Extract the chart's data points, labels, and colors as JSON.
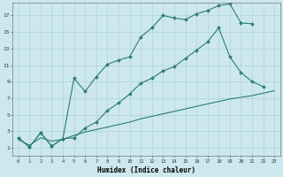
{
  "bg_color": "#cce8ee",
  "line_color": "#2e7d6e",
  "grid_color": "#aaccd4",
  "xlabel": "Humidex (Indice chaleur)",
  "ylabel_ticks": [
    1,
    3,
    5,
    7,
    9,
    11,
    13,
    15,
    17
  ],
  "xlabel_ticks": [
    0,
    1,
    2,
    3,
    4,
    5,
    6,
    7,
    8,
    9,
    10,
    11,
    12,
    13,
    14,
    15,
    16,
    17,
    18,
    19,
    20,
    21,
    22,
    23
  ],
  "xlim": [
    -0.5,
    23.5
  ],
  "ylim": [
    0.0,
    18.5
  ],
  "curve1_x": [
    0,
    1,
    2,
    3,
    4,
    5,
    6,
    7,
    8,
    9,
    10,
    11,
    12,
    13,
    14,
    15,
    16,
    17,
    18,
    19,
    20,
    21
  ],
  "curve1_y": [
    2.2,
    1.1,
    2.8,
    1.2,
    2.1,
    9.4,
    7.8,
    9.6,
    11.1,
    11.6,
    12.0,
    14.4,
    15.5,
    17.0,
    16.7,
    16.5,
    17.2,
    17.6,
    18.2,
    18.4,
    16.1,
    16.0
  ],
  "curve2_x": [
    0,
    1,
    2,
    3,
    4,
    5,
    6,
    7,
    8,
    9,
    10,
    11,
    12,
    13,
    14,
    15,
    16,
    17,
    18,
    19,
    20,
    21,
    22
  ],
  "curve2_y": [
    2.2,
    1.1,
    2.8,
    1.2,
    2.1,
    2.2,
    3.4,
    4.1,
    5.5,
    6.4,
    7.5,
    8.8,
    9.4,
    10.3,
    10.8,
    11.8,
    12.8,
    13.8,
    15.5,
    12.0,
    10.1,
    9.0,
    8.4
  ],
  "curve3_x": [
    0,
    1,
    2,
    3,
    4,
    5,
    6,
    7,
    8,
    9,
    10,
    11,
    12,
    13,
    14,
    15,
    16,
    17,
    18,
    19,
    20,
    21,
    22,
    23
  ],
  "curve3_y": [
    2.0,
    1.3,
    2.2,
    1.8,
    2.0,
    2.5,
    2.9,
    3.2,
    3.5,
    3.8,
    4.1,
    4.5,
    4.8,
    5.1,
    5.4,
    5.7,
    6.0,
    6.3,
    6.6,
    6.9,
    7.1,
    7.3,
    7.6,
    7.9
  ]
}
